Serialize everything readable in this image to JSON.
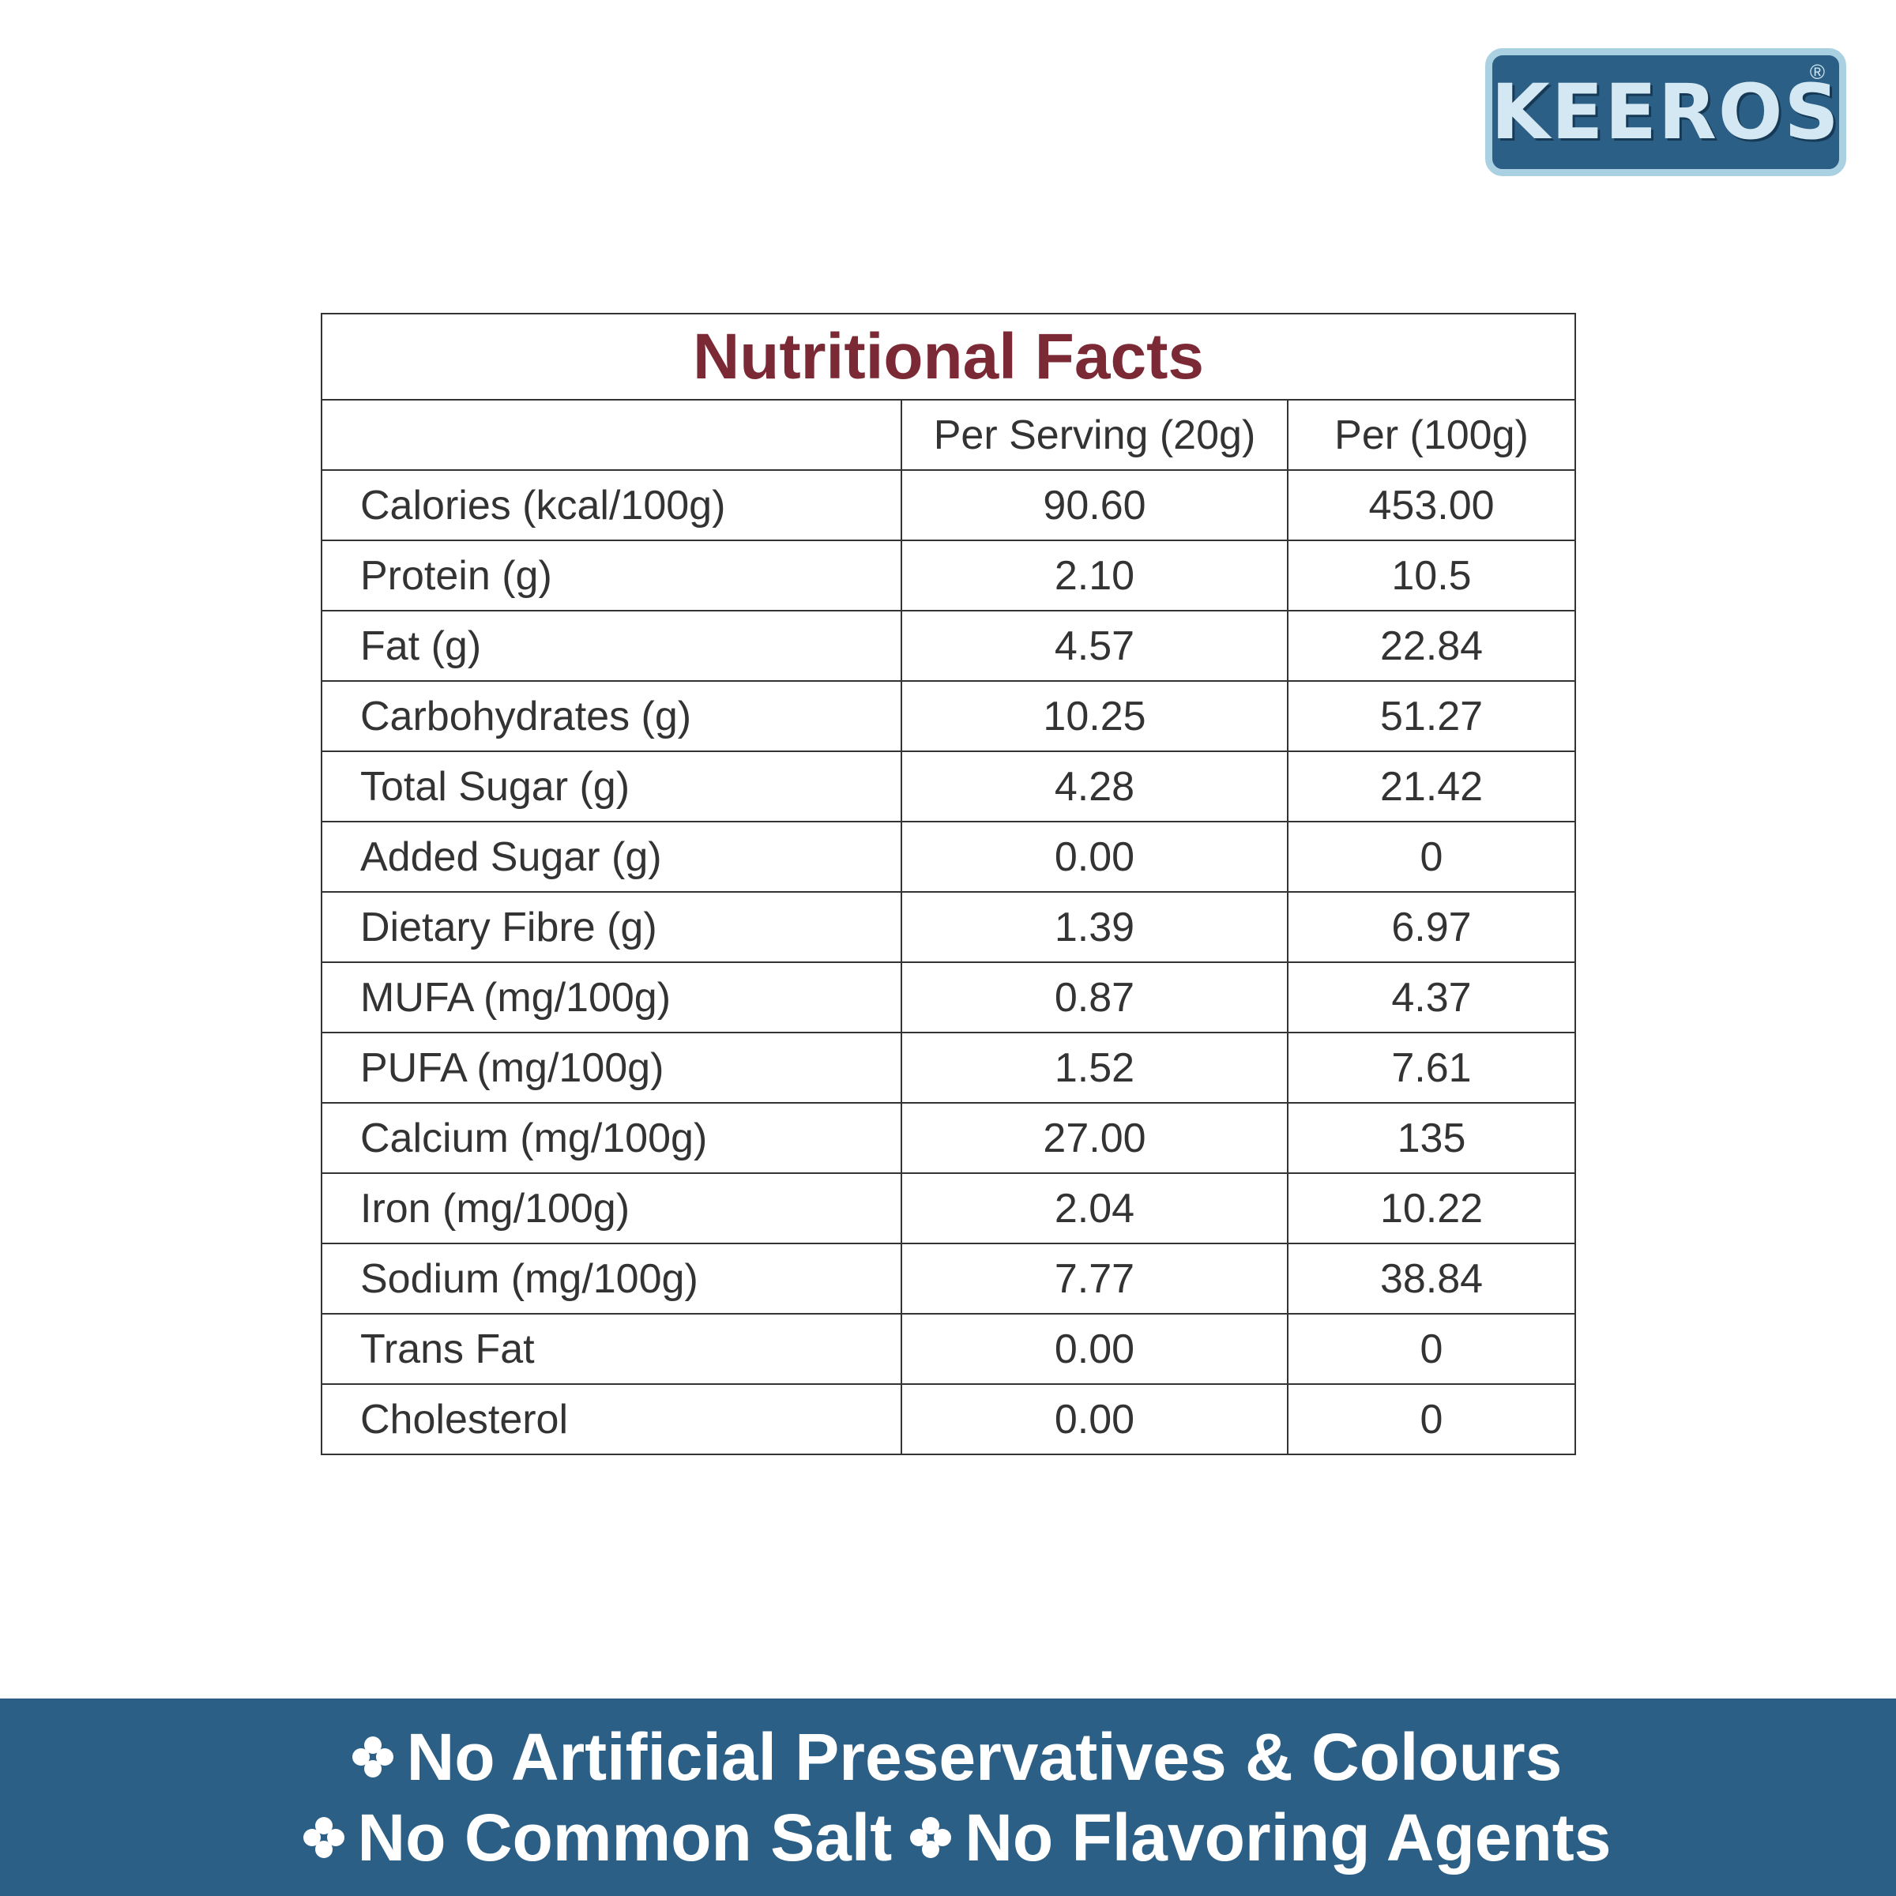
{
  "logo": {
    "name": "KEEROS",
    "mark": "®"
  },
  "table": {
    "title": "Nutritional Facts",
    "columns": [
      "Per Serving (20g)",
      "Per (100g)"
    ],
    "rows": [
      [
        "Calories (kcal/100g)",
        "90.60",
        "453.00"
      ],
      [
        "Protein (g)",
        "2.10",
        "10.5"
      ],
      [
        "Fat (g)",
        "4.57",
        "22.84"
      ],
      [
        "Carbohydrates (g)",
        "10.25",
        "51.27"
      ],
      [
        "Total Sugar (g)",
        "4.28",
        "21.42"
      ],
      [
        "Added Sugar (g)",
        "0.00",
        "0"
      ],
      [
        "Dietary Fibre (g)",
        "1.39",
        "6.97"
      ],
      [
        "MUFA (mg/100g)",
        "0.87",
        "4.37"
      ],
      [
        "PUFA (mg/100g)",
        "1.52",
        "7.61"
      ],
      [
        "Calcium (mg/100g)",
        "27.00",
        "135"
      ],
      [
        "Iron (mg/100g)",
        "2.04",
        "10.22"
      ],
      [
        "Sodium (mg/100g)",
        "7.77",
        "38.84"
      ],
      [
        "Trans Fat",
        "0.00",
        "0"
      ],
      [
        "Cholesterol",
        "0.00",
        "0"
      ]
    ]
  },
  "footer": {
    "lines": [
      [
        "No Artificial Preservatives & Colours"
      ],
      [
        "No Common Salt",
        "No Flavoring Agents"
      ]
    ]
  }
}
